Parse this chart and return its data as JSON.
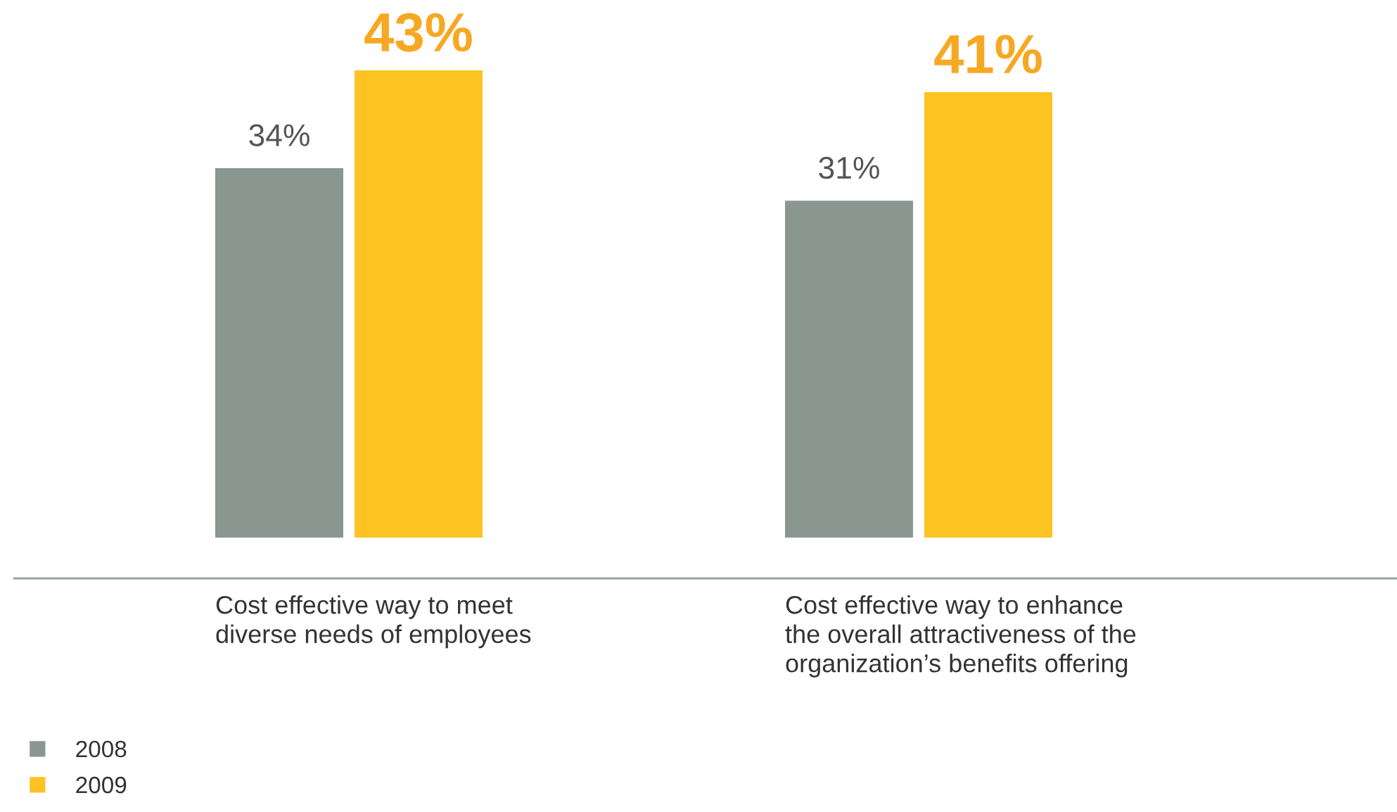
{
  "chart_data": {
    "type": "bar",
    "categories": [
      "Cost effective way to meet\ndiverse needs of employees",
      "Cost effective way to enhance\nthe overall attractiveness of the\norganization’s benefits offering"
    ],
    "series": [
      {
        "name": "2008",
        "color": "#8a9690",
        "values": [
          34,
          31
        ],
        "value_labels": [
          "34%",
          "31%"
        ]
      },
      {
        "name": "2009",
        "color": "#fdc322",
        "values": [
          43,
          41
        ],
        "value_labels": [
          "43%",
          "41%"
        ]
      }
    ],
    "legend": "bottom left"
  }
}
